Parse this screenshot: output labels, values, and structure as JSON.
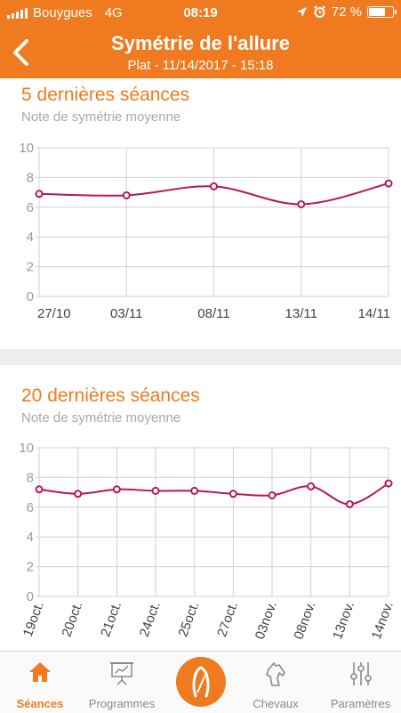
{
  "status": {
    "carrier": "Bouygues",
    "network": "4G",
    "time": "08:19",
    "battery": "72 %",
    "battery_level": 0.72
  },
  "header": {
    "title": "Symétrie de l'allure",
    "subtitle": "Plat - 11/14/2017 - 15:18"
  },
  "section1": {
    "title": "5 dernières séances",
    "subtitle": "Note de symétrie moyenne"
  },
  "section2": {
    "title": "20 dernières séances",
    "subtitle": "Note de symétrie moyenne"
  },
  "colors": {
    "accent": "#f07a1f",
    "series": "#b5175b",
    "grid": "#d0d0d0"
  },
  "chart_data": [
    {
      "type": "line",
      "categories": [
        "27/10",
        "03/11",
        "08/11",
        "13/11",
        "14/11"
      ],
      "values": [
        6.9,
        6.8,
        7.4,
        6.2,
        7.6
      ],
      "ylim": [
        0,
        10
      ],
      "yticks": [
        "0",
        "2",
        "4",
        "6",
        "8",
        "10"
      ],
      "grid": true,
      "legend": "none"
    },
    {
      "type": "line",
      "categories": [
        "19oct.",
        "20oct.",
        "21oct.",
        "24oct.",
        "25oct.",
        "27oct.",
        "03nov.",
        "08nov.",
        "13nov.",
        "14nov."
      ],
      "values": [
        7.2,
        6.9,
        7.2,
        7.1,
        7.1,
        6.9,
        6.8,
        7.4,
        6.2,
        7.6
      ],
      "ylim": [
        0,
        10
      ],
      "yticks": [
        "0",
        "2",
        "4",
        "6",
        "8",
        "10"
      ],
      "grid": true,
      "legend": "none"
    }
  ],
  "tabs": [
    {
      "label": "Séances",
      "icon": "home-icon",
      "active": true
    },
    {
      "label": "Programmes",
      "icon": "presentation-icon",
      "active": false
    },
    {
      "label": "",
      "icon": "horseshoe-icon",
      "active": false
    },
    {
      "label": "Chevaux",
      "icon": "horse-head-icon",
      "active": false
    },
    {
      "label": "Paramètres",
      "icon": "sliders-icon",
      "active": false
    }
  ]
}
